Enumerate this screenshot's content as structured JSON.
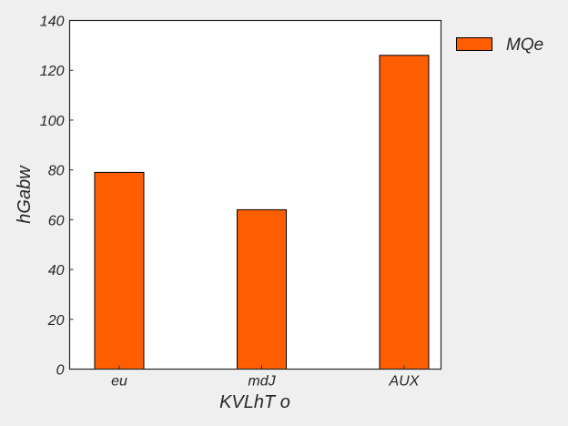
{
  "chart_data": {
    "type": "bar",
    "categories": [
      "eu",
      "mdJ",
      "AUX"
    ],
    "series": [
      {
        "name": "MQe",
        "values": [
          79,
          64,
          126
        ],
        "color": "#ff5e00"
      }
    ],
    "xlabel": "KVLhT o",
    "ylabel": "hGabw",
    "ylim": [
      0,
      140
    ],
    "yticks": [
      0,
      20,
      40,
      60,
      80,
      100,
      120,
      140
    ],
    "grid": false,
    "legend_position": "outside-top-right"
  }
}
